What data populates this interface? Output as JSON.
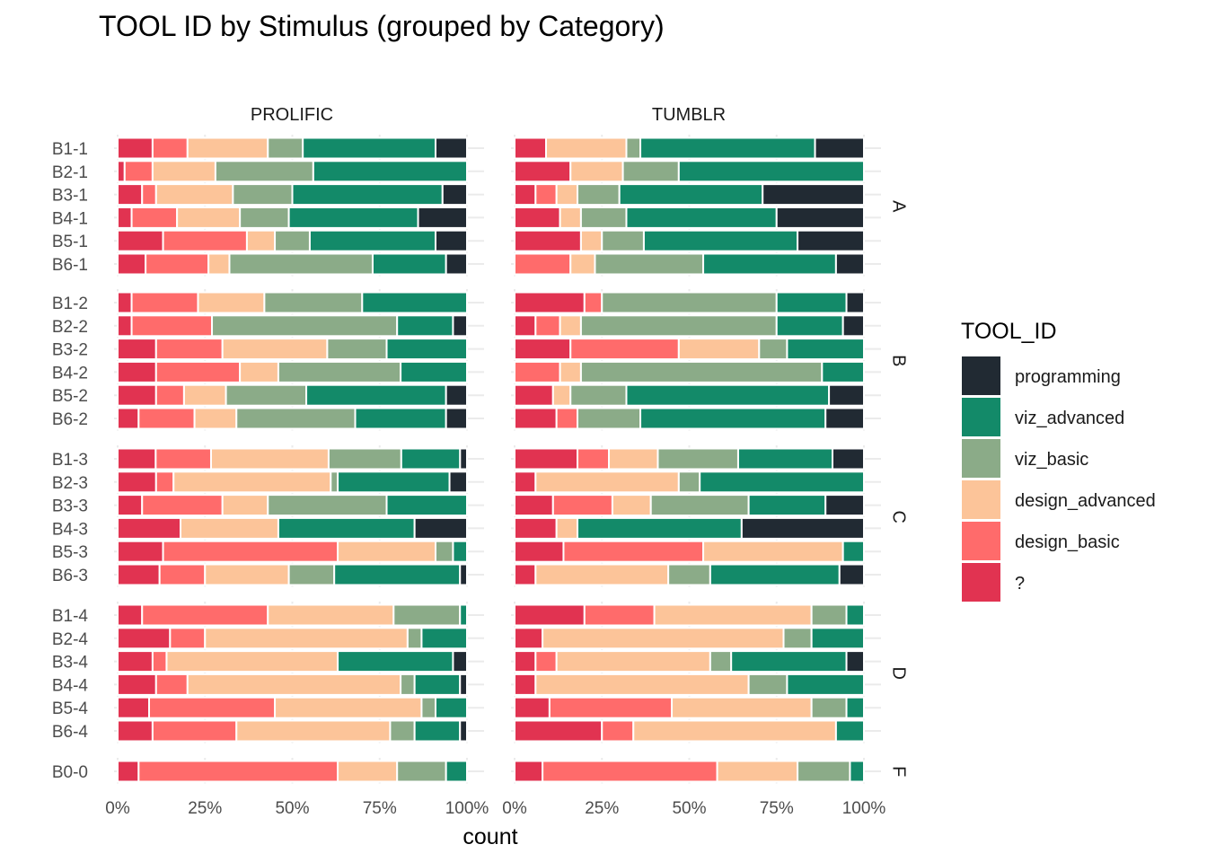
{
  "chart_data": {
    "type": "bar",
    "orientation": "horizontal",
    "stacked": "fill",
    "title": "TOOL ID by Stimulus (grouped by Category)",
    "xlabel": "count",
    "ylabel": "",
    "xlim": [
      0,
      1
    ],
    "x_ticks": [
      "0%",
      "25%",
      "50%",
      "75%",
      "100%"
    ],
    "facet_columns": [
      "PROLIFIC",
      "TUMBLR"
    ],
    "facet_rows": [
      {
        "label": "A",
        "categories": [
          "B1-1",
          "B2-1",
          "B3-1",
          "B4-1",
          "B5-1",
          "B6-1"
        ]
      },
      {
        "label": "B",
        "categories": [
          "B1-2",
          "B2-2",
          "B3-2",
          "B4-2",
          "B5-2",
          "B6-2"
        ]
      },
      {
        "label": "C",
        "categories": [
          "B1-3",
          "B2-3",
          "B3-3",
          "B4-3",
          "B5-3",
          "B6-3"
        ]
      },
      {
        "label": "D",
        "categories": [
          "B1-4",
          "B2-4",
          "B3-4",
          "B4-4",
          "B5-4",
          "B6-4"
        ]
      },
      {
        "label": "F",
        "categories": [
          "B0-0"
        ]
      }
    ],
    "series_order": [
      "?",
      "design_basic",
      "design_advanced",
      "viz_basic",
      "viz_advanced",
      "programming"
    ],
    "legend": {
      "title": "TOOL_ID",
      "position": "right",
      "items": [
        {
          "name": "programming",
          "color": "#212A33"
        },
        {
          "name": "viz_advanced",
          "color": "#138A69"
        },
        {
          "name": "viz_basic",
          "color": "#8BAB88"
        },
        {
          "name": "design_advanced",
          "color": "#FCC499"
        },
        {
          "name": "design_basic",
          "color": "#FF6B6B"
        },
        {
          "name": "?",
          "color": "#E13351"
        }
      ]
    },
    "colors": {
      "?": "#E13351",
      "design_basic": "#FF6B6B",
      "design_advanced": "#FCC499",
      "viz_basic": "#8BAB88",
      "viz_advanced": "#138A69",
      "programming": "#212A33"
    },
    "values": {
      "PROLIFIC": {
        "B1-1": [
          0.1,
          0.1,
          0.23,
          0.1,
          0.38,
          0.09
        ],
        "B2-1": [
          0.02,
          0.08,
          0.18,
          0.28,
          0.44,
          0.0
        ],
        "B3-1": [
          0.07,
          0.04,
          0.22,
          0.17,
          0.43,
          0.07
        ],
        "B4-1": [
          0.04,
          0.13,
          0.18,
          0.14,
          0.37,
          0.14
        ],
        "B5-1": [
          0.13,
          0.24,
          0.08,
          0.1,
          0.36,
          0.09
        ],
        "B6-1": [
          0.08,
          0.18,
          0.06,
          0.41,
          0.21,
          0.06
        ],
        "B1-2": [
          0.04,
          0.19,
          0.19,
          0.28,
          0.3,
          0.0
        ],
        "B2-2": [
          0.04,
          0.23,
          0.0,
          0.53,
          0.16,
          0.04
        ],
        "B3-2": [
          0.11,
          0.19,
          0.3,
          0.17,
          0.23,
          0.0
        ],
        "B4-2": [
          0.11,
          0.24,
          0.11,
          0.35,
          0.19,
          0.0
        ],
        "B5-2": [
          0.11,
          0.08,
          0.12,
          0.23,
          0.4,
          0.06
        ],
        "B6-2": [
          0.06,
          0.16,
          0.12,
          0.34,
          0.26,
          0.06
        ],
        "B1-3": [
          0.11,
          0.16,
          0.34,
          0.21,
          0.17,
          0.02
        ],
        "B2-3": [
          0.11,
          0.05,
          0.45,
          0.02,
          0.32,
          0.05
        ],
        "B3-3": [
          0.07,
          0.23,
          0.13,
          0.34,
          0.23,
          0.0
        ],
        "B4-3": [
          0.18,
          0.0,
          0.28,
          0.0,
          0.39,
          0.15
        ],
        "B5-3": [
          0.13,
          0.5,
          0.28,
          0.05,
          0.04,
          0.0
        ],
        "B6-3": [
          0.12,
          0.13,
          0.24,
          0.13,
          0.36,
          0.02
        ],
        "B1-4": [
          0.07,
          0.36,
          0.36,
          0.19,
          0.02,
          0.0
        ],
        "B2-4": [
          0.15,
          0.1,
          0.58,
          0.04,
          0.13,
          0.0
        ],
        "B3-4": [
          0.1,
          0.04,
          0.49,
          0.0,
          0.33,
          0.04
        ],
        "B4-4": [
          0.11,
          0.09,
          0.61,
          0.04,
          0.13,
          0.02
        ],
        "B5-4": [
          0.09,
          0.36,
          0.42,
          0.04,
          0.09,
          0.0
        ],
        "B6-4": [
          0.1,
          0.24,
          0.44,
          0.07,
          0.13,
          0.02
        ],
        "B0-0": [
          0.06,
          0.57,
          0.17,
          0.14,
          0.06,
          0.0
        ]
      },
      "TUMBLR": {
        "B1-1": [
          0.09,
          0.0,
          0.23,
          0.04,
          0.5,
          0.14
        ],
        "B2-1": [
          0.16,
          0.0,
          0.15,
          0.16,
          0.53,
          0.0
        ],
        "B3-1": [
          0.06,
          0.06,
          0.06,
          0.12,
          0.41,
          0.29
        ],
        "B4-1": [
          0.13,
          0.0,
          0.06,
          0.13,
          0.43,
          0.25
        ],
        "B5-1": [
          0.19,
          0.0,
          0.06,
          0.12,
          0.44,
          0.19
        ],
        "B6-1": [
          0.0,
          0.16,
          0.07,
          0.31,
          0.38,
          0.08
        ],
        "B1-2": [
          0.2,
          0.05,
          0.0,
          0.5,
          0.2,
          0.05
        ],
        "B2-2": [
          0.06,
          0.07,
          0.06,
          0.56,
          0.19,
          0.06
        ],
        "B3-2": [
          0.16,
          0.31,
          0.23,
          0.08,
          0.22,
          0.0
        ],
        "B4-2": [
          0.0,
          0.13,
          0.06,
          0.69,
          0.12,
          0.0
        ],
        "B5-2": [
          0.11,
          0.0,
          0.05,
          0.16,
          0.58,
          0.1
        ],
        "B6-2": [
          0.12,
          0.06,
          0.0,
          0.18,
          0.53,
          0.11
        ],
        "B1-3": [
          0.18,
          0.09,
          0.14,
          0.23,
          0.27,
          0.09
        ],
        "B2-3": [
          0.06,
          0.0,
          0.41,
          0.06,
          0.47,
          0.0
        ],
        "B3-3": [
          0.11,
          0.17,
          0.11,
          0.28,
          0.22,
          0.11
        ],
        "B4-3": [
          0.12,
          0.0,
          0.06,
          0.0,
          0.47,
          0.35
        ],
        "B5-3": [
          0.14,
          0.4,
          0.4,
          0.0,
          0.06,
          0.0
        ],
        "B6-3": [
          0.06,
          0.0,
          0.38,
          0.12,
          0.37,
          0.07
        ],
        "B1-4": [
          0.2,
          0.2,
          0.45,
          0.1,
          0.05,
          0.0
        ],
        "B2-4": [
          0.08,
          0.0,
          0.69,
          0.08,
          0.15,
          0.0
        ],
        "B3-4": [
          0.06,
          0.06,
          0.44,
          0.06,
          0.33,
          0.05
        ],
        "B4-4": [
          0.06,
          0.0,
          0.61,
          0.11,
          0.22,
          0.0
        ],
        "B5-4": [
          0.1,
          0.35,
          0.4,
          0.1,
          0.05,
          0.0
        ],
        "B6-4": [
          0.25,
          0.09,
          0.58,
          0.0,
          0.08,
          0.0
        ],
        "B0-0": [
          0.08,
          0.5,
          0.23,
          0.15,
          0.04,
          0.0
        ]
      }
    }
  }
}
